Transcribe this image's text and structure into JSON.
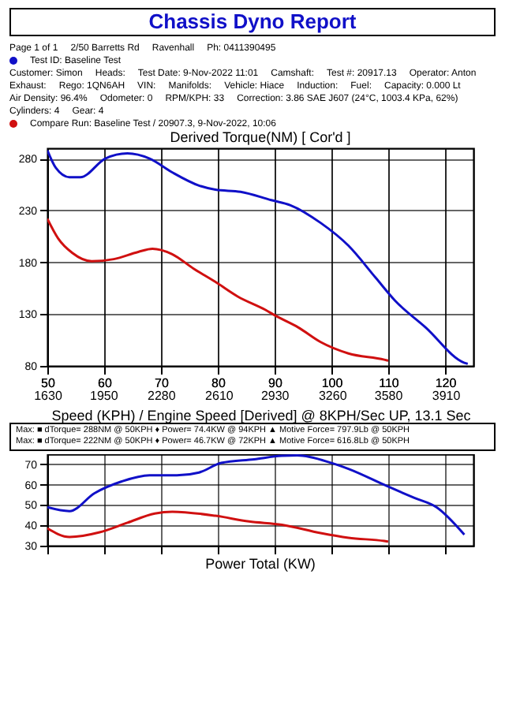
{
  "chart_data": [
    {
      "type": "line",
      "title": "Derived Torque(NM)     [ Cor'd ]",
      "xlabel": "Speed (KPH) / Engine Speed [Derived] @ 8KPH/Sec UP, 13.1 Sec",
      "annotations": [
        "Chassis Dyno Report",
        "Page 1 of 1",
        "2/50 Barretts Rd",
        "Ravenhall",
        "Ph: 0411390495",
        "Test ID: Baseline Test",
        "Customer: Simon",
        "Heads:",
        "Test Date: 9-Nov-2022 11:01",
        "Camshaft:",
        "Test #: 20917.13",
        "Operator: Anton",
        "Exhaust:",
        "Rego: 1QN6AH",
        "VIN:",
        "Manifolds:",
        "Vehicle: Hiace",
        "Induction:",
        "Fuel:",
        "Capacity: 0.000 Lt",
        "Air Density: 96.4%",
        "Odometer: 0",
        "RPM/KPH: 33",
        "Correction: 3.86 SAE J607 (24°C, 1003.4 KPa, 62%)",
        "Cylinders: 4",
        "Gear: 4",
        "Compare Run: Baseline Test / 20907.3, 9-Nov-2022, 10:06"
      ],
      "xlim": [
        50,
        125
      ],
      "xticks": [
        50,
        60,
        70,
        80,
        90,
        100,
        110,
        120
      ],
      "x2lim": [
        1630,
        4070
      ],
      "x2ticks": [
        1630,
        1950,
        2280,
        2610,
        2930,
        3260,
        3580,
        3910
      ],
      "ylim": [
        80,
        290
      ],
      "yticks": [
        80,
        130,
        180,
        230,
        280
      ],
      "grid": true,
      "series": [
        {
          "color": "#1010c8",
          "x": [
            50,
            51.5,
            53.9,
            55.8,
            60.2,
            64.1,
            68,
            71.9,
            76.7,
            79.6,
            84,
            89.4,
            92.8,
            98.1,
            103,
            107.8,
            111.2,
            116.6,
            123.4,
            124
          ],
          "values": [
            288,
            271,
            262,
            262,
            280,
            285,
            280,
            267,
            254,
            250,
            248,
            240,
            235,
            218,
            196,
            165,
            143,
            117,
            83,
            82
          ]
        },
        {
          "color": "#d01010",
          "x": [
            50,
            51.9,
            54.4,
            57.8,
            61.7,
            66,
            68.5,
            71.9,
            75.7,
            79.6,
            83.5,
            88.4,
            90.3,
            94.2,
            98.1,
            103,
            109.3,
            110
          ],
          "values": [
            222,
            203,
            189,
            181,
            183,
            190,
            193,
            188,
            174,
            161,
            147,
            134,
            128,
            117,
            103,
            92,
            86,
            85
          ]
        }
      ]
    },
    {
      "type": "line",
      "title": "Power Total (KW)",
      "tick_labels": "y",
      "annotations": [
        "Max: ■ dTorque= 288NM @ 50KPH   ♦ Power= 74.4KW @ 94KPH   ▲ Motive Force= 797.9Lb @ 50KPH",
        "Max: ■ dTorque= 222NM @ 50KPH   ♦ Power= 46.7KW @ 72KPH   ▲ Motive Force= 616.8Lb @ 50KPH"
      ],
      "xlim": [
        50,
        125
      ],
      "xticks": [
        50,
        60,
        70,
        80,
        90,
        100,
        110,
        120
      ],
      "ylim": [
        30,
        75
      ],
      "yticks": [
        30,
        40,
        50,
        60,
        70
      ],
      "grid": true,
      "series": [
        {
          "color": "#1010c8",
          "x": [
            50,
            53.9,
            58.3,
            63.1,
            68,
            72.8,
            76.7,
            80.6,
            86.4,
            91.3,
            94,
            100,
            103,
            109.8,
            114.6,
            118.5,
            123.4
          ],
          "values": [
            48.9,
            47,
            55.8,
            61.6,
            64.6,
            64.6,
            66,
            70.7,
            72.5,
            74.2,
            74.4,
            70.7,
            67.8,
            59.3,
            53.5,
            48.9,
            35.4
          ]
        },
        {
          "color": "#d01010",
          "x": [
            50,
            53.9,
            59.2,
            64.1,
            68.9,
            72,
            79.6,
            85.5,
            91.3,
            98.1,
            103,
            109.3,
            110
          ],
          "values": [
            38.5,
            34.3,
            36.6,
            41.3,
            45.8,
            46.7,
            44.7,
            41.9,
            40.3,
            36.2,
            33.9,
            32.3,
            32
          ]
        }
      ]
    }
  ]
}
